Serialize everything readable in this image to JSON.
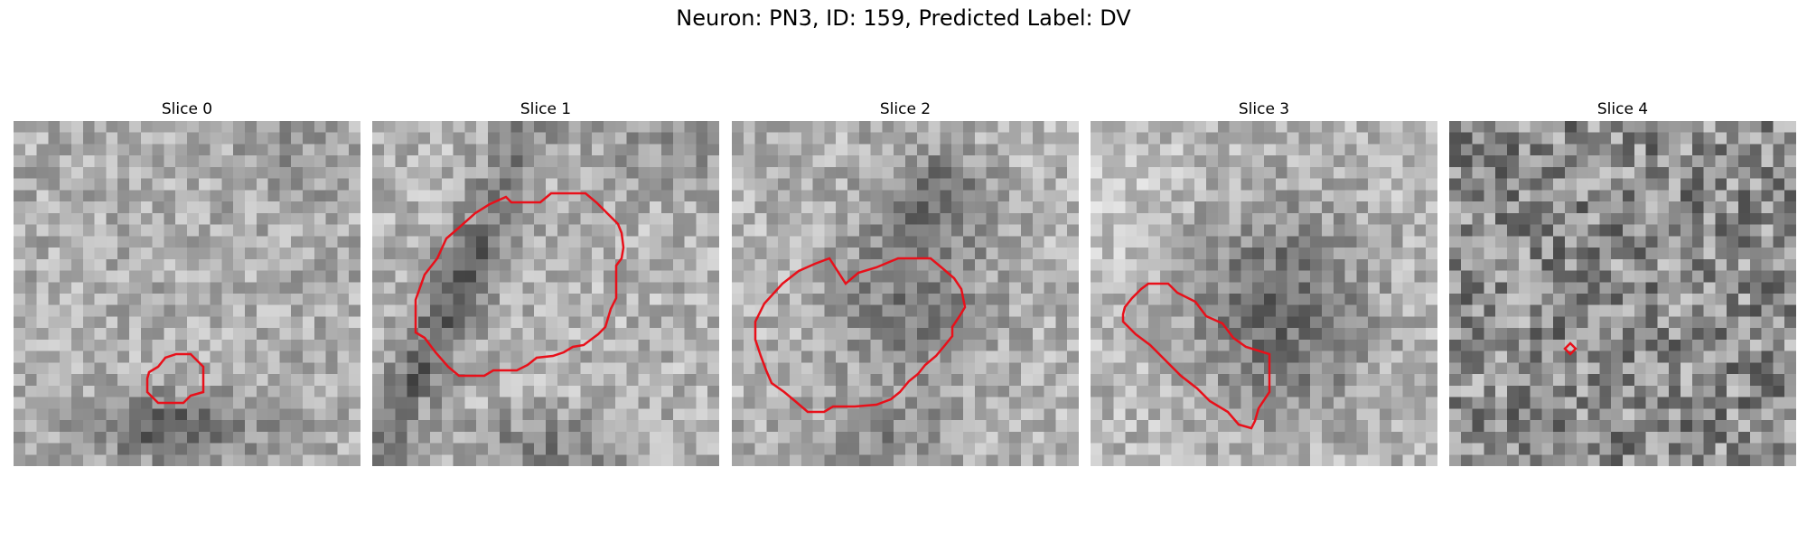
{
  "figure": {
    "title": "Neuron: PN3, ID: 159, Predicted Label: DV"
  },
  "slices": [
    {
      "label": "Slice 0",
      "contour_color": "#e8101a",
      "pattern": "soft-top-dark-bottom",
      "seed": 11
    },
    {
      "label": "Slice 1",
      "contour_color": "#e8101a",
      "pattern": "dark-band-left",
      "seed": 23
    },
    {
      "label": "Slice 2",
      "contour_color": "#e8101a",
      "pattern": "dark-center",
      "seed": 37
    },
    {
      "label": "Slice 3",
      "contour_color": "#e8101a",
      "pattern": "dark-large-blob",
      "seed": 53
    },
    {
      "label": "Slice 4",
      "contour_color": "#e8101a",
      "pattern": "uniform-noise",
      "seed": 71
    }
  ]
}
